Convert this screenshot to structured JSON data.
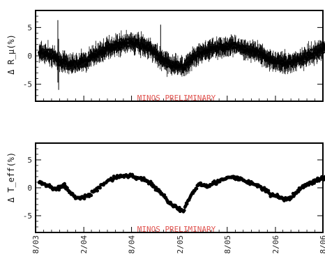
{
  "chart_data": [
    {
      "type": "scatter",
      "ylabel": "Δ R_μ(%)",
      "ylim": [
        -8,
        8
      ],
      "yticks": [
        -5,
        0,
        5
      ],
      "annotation": "MINOS PRELIMINARY",
      "error_bars": true,
      "series": [
        {
          "x": [
            "2003-08-15",
            "2003-09-15",
            "2003-10-15",
            "2003-11-15",
            "2003-12-15",
            "2004-01-15",
            "2004-02-15",
            "2004-03-15",
            "2004-04-15",
            "2004-05-15",
            "2004-06-15",
            "2004-07-15",
            "2004-08-15",
            "2004-09-15",
            "2004-10-15",
            "2004-11-15",
            "2004-12-15",
            "2005-01-15",
            "2005-02-15",
            "2005-03-15",
            "2005-04-15",
            "2005-05-15",
            "2005-06-15",
            "2005-07-15",
            "2005-08-15",
            "2005-09-15",
            "2005-10-15",
            "2005-11-15",
            "2005-12-15",
            "2006-01-15",
            "2006-02-15",
            "2006-03-15",
            "2006-04-15",
            "2006-05-15",
            "2006-06-15",
            "2006-07-15",
            "2006-08-15"
          ],
          "y": [
            0.6,
            0.3,
            -0.4,
            -1.2,
            -1.6,
            -1.3,
            -0.8,
            0.2,
            0.9,
            1.6,
            2.0,
            2.3,
            2.2,
            1.9,
            1.0,
            -0.2,
            -1.2,
            -1.6,
            -2.1,
            -0.9,
            0.3,
            0.9,
            1.3,
            1.6,
            1.8,
            1.6,
            1.1,
            0.6,
            0.0,
            -0.6,
            -1.1,
            -1.3,
            -1.0,
            -0.4,
            0.2,
            0.9,
            1.6
          ]
        }
      ]
    },
    {
      "type": "scatter",
      "ylabel": "Δ T_eff(%)",
      "ylim": [
        -8,
        8
      ],
      "yticks": [
        -5,
        0,
        5
      ],
      "annotation": "MINOS PRELIMINARY",
      "xticks": [
        "8/03",
        "2/04",
        "8/04",
        "2/05",
        "8/05",
        "2/06",
        "8/06"
      ],
      "xlim": [
        "2003-08-01",
        "2006-08-01"
      ],
      "series": [
        {
          "x": [
            "2003-08-15",
            "2003-09-15",
            "2003-10-15",
            "2003-11-15",
            "2003-12-15",
            "2004-01-15",
            "2004-02-15",
            "2004-03-15",
            "2004-04-15",
            "2004-05-15",
            "2004-06-15",
            "2004-07-15",
            "2004-08-15",
            "2004-09-15",
            "2004-10-15",
            "2004-11-15",
            "2004-12-15",
            "2005-01-15",
            "2005-02-15",
            "2005-03-15",
            "2005-04-15",
            "2005-05-15",
            "2005-06-15",
            "2005-07-15",
            "2005-08-15",
            "2005-09-15",
            "2005-10-15",
            "2005-11-15",
            "2005-12-15",
            "2006-01-15",
            "2006-02-15",
            "2006-03-15",
            "2006-04-15",
            "2006-05-15",
            "2006-06-15",
            "2006-07-15",
            "2006-08-15"
          ],
          "y": [
            0.9,
            0.5,
            -0.3,
            0.6,
            -1.2,
            -1.9,
            -1.5,
            -0.6,
            0.6,
            1.6,
            2.0,
            2.2,
            1.9,
            1.6,
            0.7,
            -0.6,
            -2.2,
            -3.4,
            -4.3,
            -1.4,
            0.7,
            0.4,
            0.9,
            1.4,
            1.9,
            1.6,
            1.1,
            0.6,
            -0.1,
            -1.3,
            -1.6,
            -2.2,
            -1.2,
            0.2,
            0.9,
            1.4,
            1.9
          ]
        }
      ]
    }
  ]
}
